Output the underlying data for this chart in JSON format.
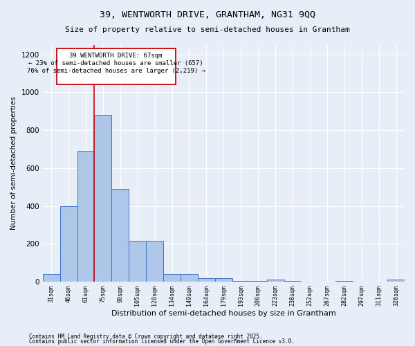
{
  "title1": "39, WENTWORTH DRIVE, GRANTHAM, NG31 9QQ",
  "title2": "Size of property relative to semi-detached houses in Grantham",
  "xlabel": "Distribution of semi-detached houses by size in Grantham",
  "ylabel": "Number of semi-detached properties",
  "categories": [
    "31sqm",
    "46sqm",
    "61sqm",
    "75sqm",
    "90sqm",
    "105sqm",
    "120sqm",
    "134sqm",
    "149sqm",
    "164sqm",
    "179sqm",
    "193sqm",
    "208sqm",
    "223sqm",
    "238sqm",
    "252sqm",
    "267sqm",
    "282sqm",
    "297sqm",
    "311sqm",
    "326sqm"
  ],
  "values": [
    40,
    400,
    690,
    880,
    490,
    215,
    215,
    40,
    40,
    20,
    20,
    5,
    5,
    10,
    5,
    0,
    0,
    5,
    0,
    0,
    10
  ],
  "bar_color": "#aec6e8",
  "bar_edge_color": "#4472c4",
  "property_line_x": 2.5,
  "property_label": "39 WENTWORTH DRIVE: 67sqm",
  "pct_smaller": "23%",
  "n_smaller": "657",
  "pct_larger": "76%",
  "n_larger": "2,219",
  "annotation_box_color": "#cc0000",
  "line_color": "#cc0000",
  "bg_color": "#e8eef7",
  "footer1": "Contains HM Land Registry data © Crown copyright and database right 2025.",
  "footer2": "Contains public sector information licensed under the Open Government Licence v3.0.",
  "ylim": [
    0,
    1250
  ],
  "yticks": [
    0,
    200,
    400,
    600,
    800,
    1000,
    1200
  ]
}
